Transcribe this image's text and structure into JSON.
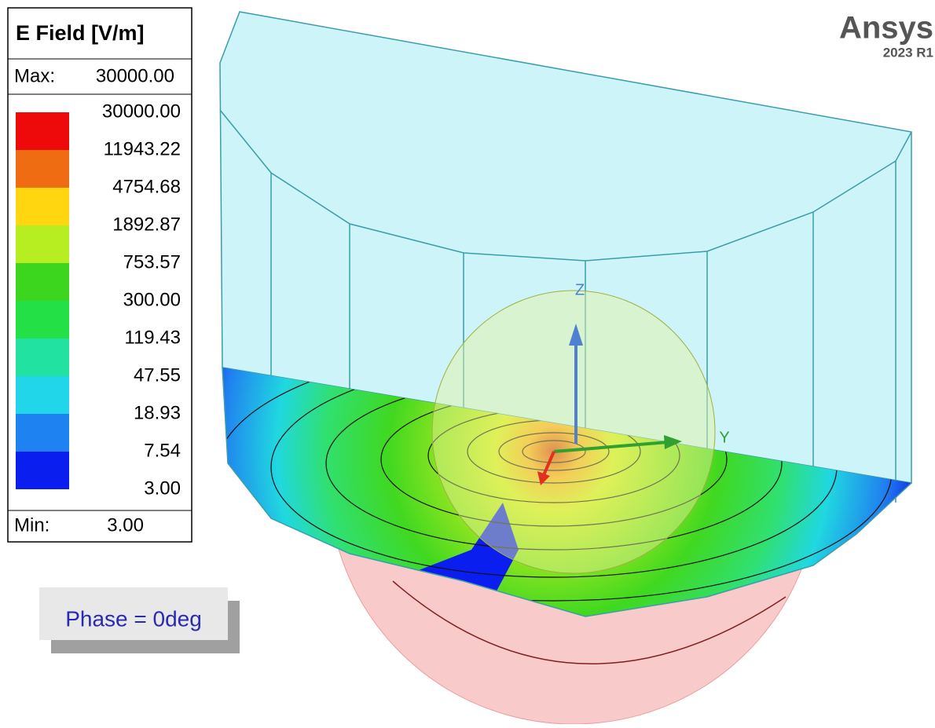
{
  "legend": {
    "title": "E Field [V/m]",
    "max_label": "Max:",
    "max_value": "30000.00",
    "levels": [
      {
        "label": "30000.00",
        "color": "#ee0a0a"
      },
      {
        "label": "11943.22",
        "color": "#f06c12"
      },
      {
        "label": "4754.68",
        "color": "#ffd610"
      },
      {
        "label": "1892.87",
        "color": "#b6ee22"
      },
      {
        "label": "753.57",
        "color": "#3cd61e"
      },
      {
        "label": "300.00",
        "color": "#22e046"
      },
      {
        "label": "119.43",
        "color": "#22e2a2"
      },
      {
        "label": "47.55",
        "color": "#22d6ea"
      },
      {
        "label": "18.93",
        "color": "#1e82f0"
      },
      {
        "label": "7.54",
        "color": "#0a1ef0"
      },
      {
        "label": "3.00",
        "color": null
      }
    ],
    "min_label": "Min:",
    "min_value": "3.00"
  },
  "phase": "Phase = 0deg",
  "logo": {
    "name": "Ansys",
    "version": "2023 R1"
  },
  "axes": {
    "z": "Z",
    "y": "Y"
  }
}
